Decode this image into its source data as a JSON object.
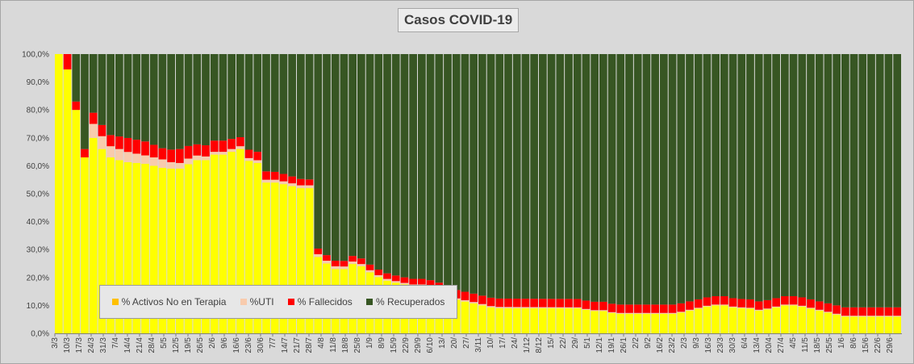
{
  "chart_data": {
    "type": "bar",
    "stacked": "percent",
    "title": "Casos  COVID-19",
    "ylim": [
      0,
      100
    ],
    "y_ticks": [
      "0,0%",
      "10,0%",
      "20,0%",
      "30,0%",
      "40,0%",
      "50,0%",
      "60,0%",
      "70,0%",
      "80,0%",
      "90,0%",
      "100,0%"
    ],
    "x_tick_labels": [
      "3/3",
      "10/3",
      "17/3",
      "24/3",
      "31/3",
      "7/4",
      "14/4",
      "21/4",
      "28/4",
      "5/5",
      "12/5",
      "19/5",
      "26/5",
      "2/6",
      "9/6",
      "16/6",
      "23/6",
      "30/6",
      "7/7",
      "14/7",
      "21/7",
      "28/7",
      "4/8",
      "11/8",
      "18/8",
      "25/8",
      "1/9",
      "8/9",
      "15/9",
      "22/9",
      "29/9",
      "6/10",
      "13/",
      "20/",
      "27/",
      "3/11",
      "10/",
      "17/",
      "24/",
      "1/12",
      "8/12",
      "15/",
      "22/",
      "29/",
      "5/1",
      "12/1",
      "19/1",
      "26/1",
      "2/2",
      "9/2",
      "16/2",
      "23/2",
      "2/3",
      "9/3",
      "16/3",
      "23/3",
      "30/3",
      "6/4",
      "13/4",
      "20/4",
      "27/4",
      "4/5",
      "11/5",
      "18/5",
      "25/5",
      "1/6",
      "8/6",
      "15/6",
      "22/6",
      "29/6"
    ],
    "days_per_tick": 7,
    "grid": false,
    "legend_position": "bottom-left, inside plot",
    "series": [
      {
        "name": "% Activos No en Terapia",
        "color": "#ffff00",
        "anchors": [
          [
            0,
            100
          ],
          [
            3,
            100
          ],
          [
            4,
            94
          ],
          [
            6,
            95
          ],
          [
            7,
            97
          ],
          [
            8,
            78
          ],
          [
            9,
            78
          ],
          [
            10,
            80
          ],
          [
            11,
            78
          ],
          [
            12,
            80
          ],
          [
            13,
            82
          ],
          [
            14,
            83
          ],
          [
            15,
            63
          ],
          [
            16,
            68
          ],
          [
            17,
            69
          ],
          [
            19,
            70
          ],
          [
            21,
            70
          ],
          [
            23,
            68
          ],
          [
            26,
            65
          ],
          [
            30,
            63
          ],
          [
            35,
            62
          ],
          [
            42,
            61
          ],
          [
            48,
            61
          ],
          [
            55,
            60
          ],
          [
            62,
            59
          ],
          [
            67,
            59
          ],
          [
            68,
            58
          ],
          [
            70,
            59
          ],
          [
            73,
            60
          ],
          [
            80,
            62
          ],
          [
            85,
            62
          ],
          [
            87,
            64
          ],
          [
            88,
            66
          ],
          [
            90,
            64
          ],
          [
            95,
            64
          ],
          [
            100,
            65
          ],
          [
            105,
            66
          ],
          [
            108,
            67
          ],
          [
            109,
            62
          ],
          [
            113,
            61
          ],
          [
            116,
            61
          ],
          [
            119,
            60
          ],
          [
            120,
            54
          ],
          [
            126,
            54
          ],
          [
            133,
            53
          ],
          [
            140,
            52
          ],
          [
            147,
            52
          ],
          [
            148,
            52
          ],
          [
            149,
            28
          ],
          [
            152,
            26
          ],
          [
            155,
            25
          ],
          [
            158,
            23
          ],
          [
            165,
            23
          ],
          [
            169,
            25
          ],
          [
            175,
            24
          ],
          [
            182,
            21
          ],
          [
            189,
            19
          ],
          [
            196,
            18
          ],
          [
            205,
            17
          ],
          [
            210,
            17
          ],
          [
            217,
            16
          ],
          [
            224,
            14
          ],
          [
            230,
            12
          ],
          [
            238,
            11
          ],
          [
            245,
            10
          ],
          [
            252,
            9
          ],
          [
            259,
            9
          ],
          [
            266,
            9
          ],
          [
            273,
            9
          ],
          [
            280,
            9
          ],
          [
            287,
            9
          ],
          [
            294,
            9
          ],
          [
            301,
            9
          ],
          [
            308,
            8
          ],
          [
            315,
            8
          ],
          [
            322,
            7
          ],
          [
            329,
            7
          ],
          [
            336,
            7
          ],
          [
            343,
            7
          ],
          [
            350,
            7
          ],
          [
            357,
            7
          ],
          [
            364,
            8
          ],
          [
            371,
            9
          ],
          [
            378,
            10
          ],
          [
            385,
            10
          ],
          [
            392,
            9
          ],
          [
            399,
            9
          ],
          [
            406,
            8
          ],
          [
            413,
            9
          ],
          [
            420,
            10
          ],
          [
            427,
            10
          ],
          [
            434,
            9
          ],
          [
            441,
            8
          ],
          [
            448,
            7
          ],
          [
            455,
            6
          ],
          [
            462,
            6
          ],
          [
            468,
            6
          ]
        ]
      },
      {
        "name": "%UTI",
        "color": "#f8cbad",
        "anchors": [
          [
            0,
            0
          ],
          [
            15,
            0
          ],
          [
            16,
            4
          ],
          [
            19,
            5
          ],
          [
            23,
            5
          ],
          [
            28,
            4
          ],
          [
            35,
            4
          ],
          [
            50,
            3
          ],
          [
            60,
            3
          ],
          [
            67,
            2
          ],
          [
            75,
            2
          ],
          [
            90,
            1
          ],
          [
            105,
            1
          ],
          [
            108,
            1
          ],
          [
            120,
            1
          ],
          [
            148,
            1
          ],
          [
            149,
            1
          ],
          [
            160,
            1
          ],
          [
            200,
            0.5
          ],
          [
            240,
            0.5
          ],
          [
            300,
            0.3
          ],
          [
            400,
            0.3
          ],
          [
            468,
            0.3
          ]
        ]
      },
      {
        "name": "% Fallecidos",
        "color": "#ff0000",
        "anchors": [
          [
            0,
            0
          ],
          [
            3,
            0
          ],
          [
            4,
            6
          ],
          [
            7,
            5
          ],
          [
            8,
            3
          ],
          [
            10,
            3
          ],
          [
            12,
            3
          ],
          [
            14,
            3
          ],
          [
            15,
            3
          ],
          [
            20,
            4
          ],
          [
            30,
            4
          ],
          [
            40,
            5
          ],
          [
            50,
            5
          ],
          [
            60,
            4
          ],
          [
            70,
            5
          ],
          [
            80,
            4
          ],
          [
            95,
            4
          ],
          [
            108,
            3
          ],
          [
            120,
            3
          ],
          [
            148,
            2
          ],
          [
            149,
            2
          ],
          [
            160,
            2
          ],
          [
            175,
            2
          ],
          [
            190,
            2
          ],
          [
            210,
            2
          ],
          [
            230,
            3
          ],
          [
            260,
            3
          ],
          [
            300,
            3
          ],
          [
            350,
            3
          ],
          [
            400,
            3
          ],
          [
            468,
            3
          ]
        ]
      },
      {
        "name": "% Recuperados",
        "color": "#375623",
        "remainder": true
      }
    ]
  },
  "legend": {
    "items": [
      {
        "label": "% Activos No en Terapia",
        "color": "#ffc000"
      },
      {
        "label": "%UTI",
        "color": "#f8cbad"
      },
      {
        "label": "% Fallecidos",
        "color": "#ff0000"
      },
      {
        "label": "% Recuperados",
        "color": "#375623"
      }
    ]
  }
}
